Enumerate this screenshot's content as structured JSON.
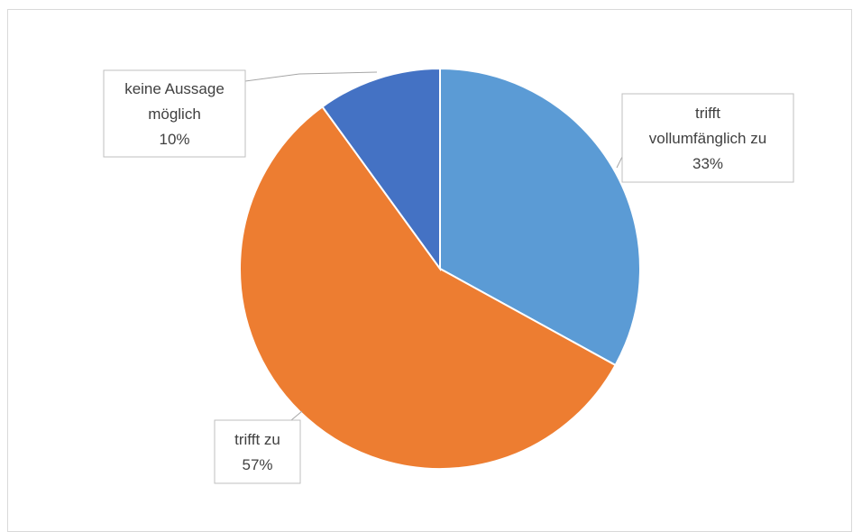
{
  "chart_data": {
    "type": "pie",
    "title": "",
    "start_angle_deg": 0,
    "direction": "clockwise",
    "legend": "none",
    "slices": [
      {
        "label_lines": [
          "trifft",
          "vollumfänglich zu"
        ],
        "value": 33,
        "value_label": "33%",
        "color": "#5b9bd5"
      },
      {
        "label_lines": [
          "trifft zu"
        ],
        "value": 57,
        "value_label": "57%",
        "color": "#ed7d31"
      },
      {
        "label_lines": [
          "keine Aussage",
          "möglich"
        ],
        "value": 10,
        "value_label": "10%",
        "color": "#4472c4"
      }
    ]
  }
}
